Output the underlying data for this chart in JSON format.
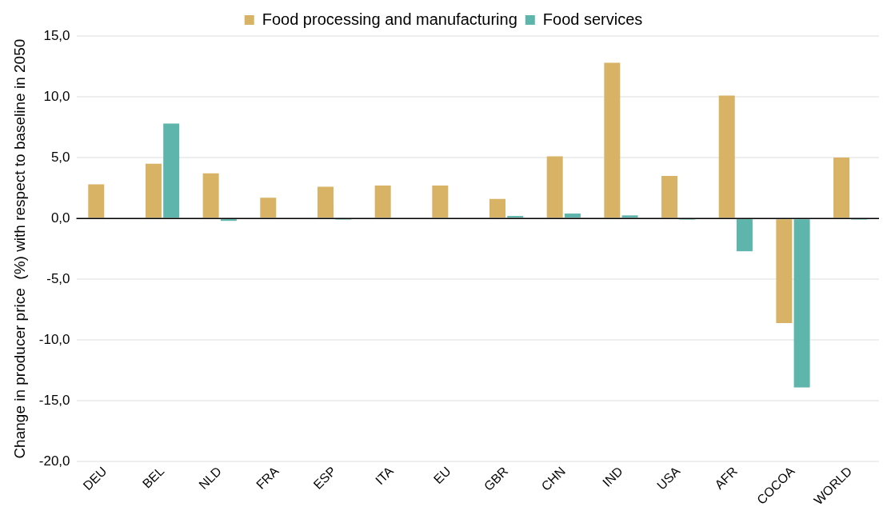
{
  "chart_data": {
    "type": "bar",
    "ylabel": "Change in producer price  (%) with respect to baseline in 2050",
    "categories": [
      "DEU",
      "BEL",
      "NLD",
      "FRA",
      "ESP",
      "ITA",
      "EU",
      "GBR",
      "CHN",
      "IND",
      "USA",
      "AFR",
      "COCOA",
      "WORLD"
    ],
    "series": [
      {
        "name": "Food processing and manufacturing",
        "color": "#d8b265",
        "values": [
          2.8,
          4.5,
          3.7,
          1.7,
          2.6,
          2.7,
          2.7,
          1.6,
          5.1,
          12.8,
          3.5,
          10.1,
          -8.6,
          5.0
        ]
      },
      {
        "name": "Food services",
        "color": "#5db5ab",
        "values": [
          0,
          7.8,
          -0.2,
          0,
          -0.1,
          0,
          0,
          0.2,
          0.4,
          0.25,
          -0.1,
          -2.7,
          -13.9,
          -0.1
        ]
      }
    ],
    "ylim": [
      -20,
      15
    ],
    "yticks": [
      {
        "value": -20,
        "label": "-20,0"
      },
      {
        "value": -15,
        "label": "-15,0"
      },
      {
        "value": -10,
        "label": "-10,0"
      },
      {
        "value": -5,
        "label": "-5,0"
      },
      {
        "value": 0,
        "label": "0,0"
      },
      {
        "value": 5,
        "label": "5,0"
      },
      {
        "value": 10,
        "label": "10,0"
      },
      {
        "value": 15,
        "label": "15,0"
      }
    ],
    "grid": "y",
    "legend": "top"
  }
}
